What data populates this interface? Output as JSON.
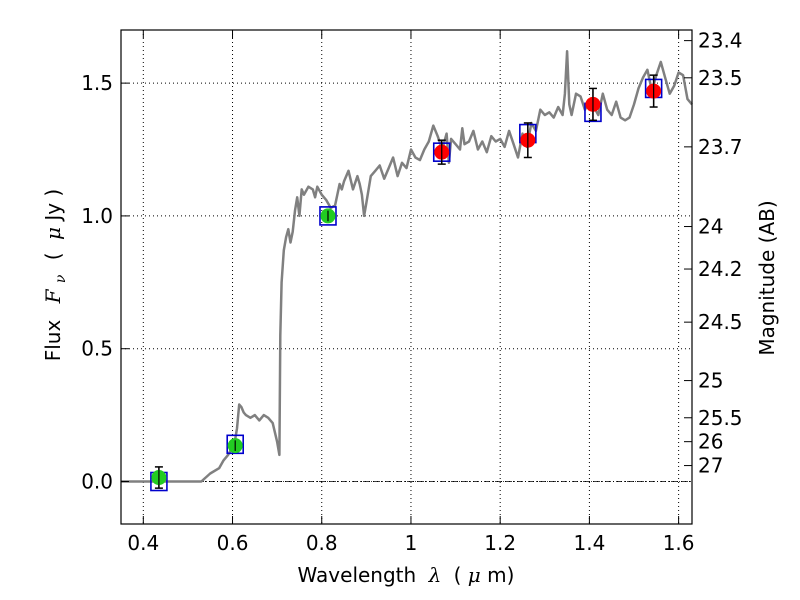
{
  "chart_data": {
    "type": "scatter",
    "title": "",
    "xlabel": {
      "text": "Wavelength",
      "symbol": "λ",
      "unit_open": "(",
      "unit_mu": "μ",
      "unit_rest": "m)"
    },
    "ylabel": {
      "text": "Flux",
      "symbol": "F",
      "subscript": "ν",
      "unit_open": "(",
      "unit_mu": "μ",
      "unit_rest": "Jy )"
    },
    "y2label": "Magnitude (AB)",
    "xlim": [
      0.35,
      1.63
    ],
    "ylim": [
      -0.16,
      1.7
    ],
    "grid": true,
    "x_ticks": [
      {
        "value": 0.4,
        "label": "0.4"
      },
      {
        "value": 0.6,
        "label": "0.6"
      },
      {
        "value": 0.8,
        "label": "0.8"
      },
      {
        "value": 1.0,
        "label": "1"
      },
      {
        "value": 1.2,
        "label": "1.2"
      },
      {
        "value": 1.4,
        "label": "1.4"
      },
      {
        "value": 1.6,
        "label": "1.6"
      }
    ],
    "y_ticks": [
      {
        "value": 0.0,
        "label": "0.0"
      },
      {
        "value": 0.5,
        "label": "0.5"
      },
      {
        "value": 1.0,
        "label": "1.0"
      },
      {
        "value": 1.5,
        "label": "1.5"
      }
    ],
    "y2_ticks": [
      {
        "label": "23.4",
        "flux": 1.66
      },
      {
        "label": "23.5",
        "flux": 1.52
      },
      {
        "label": "23.7",
        "flux": 1.26
      },
      {
        "label": "24",
        "flux": 0.96
      },
      {
        "label": "24.2",
        "flux": 0.8
      },
      {
        "label": "24.5",
        "flux": 0.6
      },
      {
        "label": "25",
        "flux": 0.38
      },
      {
        "label": "25.5",
        "flux": 0.24
      },
      {
        "label": "26",
        "flux": 0.15
      },
      {
        "label": "27",
        "flux": 0.06
      }
    ],
    "model_sed": {
      "color": "#808080",
      "points": [
        [
          0.35,
          0.0
        ],
        [
          0.53,
          0.0
        ],
        [
          0.55,
          0.03
        ],
        [
          0.57,
          0.05
        ],
        [
          0.58,
          0.08
        ],
        [
          0.59,
          0.1
        ],
        [
          0.6,
          0.13
        ],
        [
          0.605,
          0.15
        ],
        [
          0.61,
          0.2
        ],
        [
          0.615,
          0.29
        ],
        [
          0.62,
          0.28
        ],
        [
          0.625,
          0.26
        ],
        [
          0.63,
          0.25
        ],
        [
          0.64,
          0.24
        ],
        [
          0.65,
          0.25
        ],
        [
          0.66,
          0.23
        ],
        [
          0.67,
          0.25
        ],
        [
          0.68,
          0.24
        ],
        [
          0.69,
          0.22
        ],
        [
          0.7,
          0.15
        ],
        [
          0.705,
          0.1
        ],
        [
          0.707,
          0.55
        ],
        [
          0.71,
          0.75
        ],
        [
          0.715,
          0.87
        ],
        [
          0.72,
          0.92
        ],
        [
          0.725,
          0.95
        ],
        [
          0.73,
          0.9
        ],
        [
          0.735,
          0.94
        ],
        [
          0.74,
          1.02
        ],
        [
          0.745,
          1.07
        ],
        [
          0.75,
          1.0
        ],
        [
          0.755,
          1.1
        ],
        [
          0.76,
          1.08
        ],
        [
          0.77,
          1.11
        ],
        [
          0.78,
          1.1
        ],
        [
          0.785,
          1.07
        ],
        [
          0.79,
          1.11
        ],
        [
          0.8,
          1.08
        ],
        [
          0.81,
          1.06
        ],
        [
          0.82,
          1.03
        ],
        [
          0.83,
          1.04
        ],
        [
          0.84,
          1.12
        ],
        [
          0.845,
          1.1
        ],
        [
          0.85,
          1.13
        ],
        [
          0.86,
          1.17
        ],
        [
          0.87,
          1.1
        ],
        [
          0.88,
          1.15
        ],
        [
          0.885,
          1.12
        ],
        [
          0.89,
          1.08
        ],
        [
          0.895,
          1.0
        ],
        [
          0.9,
          1.05
        ],
        [
          0.91,
          1.15
        ],
        [
          0.92,
          1.17
        ],
        [
          0.93,
          1.19
        ],
        [
          0.94,
          1.14
        ],
        [
          0.95,
          1.18
        ],
        [
          0.96,
          1.22
        ],
        [
          0.97,
          1.15
        ],
        [
          0.98,
          1.2
        ],
        [
          0.99,
          1.18
        ],
        [
          1.0,
          1.25
        ],
        [
          1.01,
          1.22
        ],
        [
          1.02,
          1.21
        ],
        [
          1.03,
          1.25
        ],
        [
          1.04,
          1.28
        ],
        [
          1.05,
          1.34
        ],
        [
          1.06,
          1.3
        ],
        [
          1.07,
          1.25
        ],
        [
          1.08,
          1.31
        ],
        [
          1.085,
          1.2
        ],
        [
          1.09,
          1.29
        ],
        [
          1.1,
          1.27
        ],
        [
          1.11,
          1.25
        ],
        [
          1.115,
          1.33
        ],
        [
          1.12,
          1.27
        ],
        [
          1.13,
          1.28
        ],
        [
          1.14,
          1.32
        ],
        [
          1.15,
          1.25
        ],
        [
          1.16,
          1.28
        ],
        [
          1.17,
          1.24
        ],
        [
          1.18,
          1.3
        ],
        [
          1.19,
          1.28
        ],
        [
          1.2,
          1.29
        ],
        [
          1.21,
          1.26
        ],
        [
          1.22,
          1.32
        ],
        [
          1.23,
          1.27
        ],
        [
          1.24,
          1.22
        ],
        [
          1.25,
          1.31
        ],
        [
          1.26,
          1.26
        ],
        [
          1.27,
          1.35
        ],
        [
          1.28,
          1.32
        ],
        [
          1.29,
          1.4
        ],
        [
          1.3,
          1.38
        ],
        [
          1.31,
          1.39
        ],
        [
          1.32,
          1.37
        ],
        [
          1.33,
          1.41
        ],
        [
          1.34,
          1.38
        ],
        [
          1.345,
          1.46
        ],
        [
          1.35,
          1.62
        ],
        [
          1.355,
          1.42
        ],
        [
          1.36,
          1.38
        ],
        [
          1.37,
          1.46
        ],
        [
          1.38,
          1.45
        ],
        [
          1.39,
          1.4
        ],
        [
          1.4,
          1.43
        ],
        [
          1.41,
          1.41
        ],
        [
          1.42,
          1.38
        ],
        [
          1.43,
          1.46
        ],
        [
          1.44,
          1.4
        ],
        [
          1.45,
          1.38
        ],
        [
          1.46,
          1.43
        ],
        [
          1.47,
          1.37
        ],
        [
          1.48,
          1.36
        ],
        [
          1.49,
          1.37
        ],
        [
          1.5,
          1.42
        ],
        [
          1.51,
          1.48
        ],
        [
          1.52,
          1.52
        ],
        [
          1.53,
          1.55
        ],
        [
          1.54,
          1.47
        ],
        [
          1.55,
          1.53
        ],
        [
          1.56,
          1.58
        ],
        [
          1.57,
          1.52
        ],
        [
          1.58,
          1.46
        ],
        [
          1.59,
          1.49
        ],
        [
          1.6,
          1.54
        ],
        [
          1.61,
          1.53
        ],
        [
          1.62,
          1.44
        ],
        [
          1.63,
          1.42
        ]
      ]
    },
    "model_boxes": {
      "color": "#0000cc",
      "points": [
        {
          "x": 0.435,
          "y": 0.0
        },
        {
          "x": 0.606,
          "y": 0.14
        },
        {
          "x": 0.814,
          "y": 1.0
        },
        {
          "x": 1.069,
          "y": 1.24
        },
        {
          "x": 1.262,
          "y": 1.31
        },
        {
          "x": 1.408,
          "y": 1.39
        },
        {
          "x": 1.544,
          "y": 1.48
        }
      ]
    },
    "observations": [
      {
        "x": 0.435,
        "y": 0.015,
        "err": 0.04,
        "color": "#22cc22"
      },
      {
        "x": 0.606,
        "y": 0.135,
        "err": 0.02,
        "color": "#22cc22"
      },
      {
        "x": 0.814,
        "y": 1.0,
        "err": 0.02,
        "color": "#22cc22"
      },
      {
        "x": 1.069,
        "y": 1.24,
        "err": 0.045,
        "color": "#ff0000"
      },
      {
        "x": 1.262,
        "y": 1.285,
        "err": 0.065,
        "color": "#ff0000"
      },
      {
        "x": 1.408,
        "y": 1.42,
        "err": 0.06,
        "color": "#ff0000"
      },
      {
        "x": 1.544,
        "y": 1.47,
        "err": 0.06,
        "color": "#ff0000"
      }
    ]
  }
}
